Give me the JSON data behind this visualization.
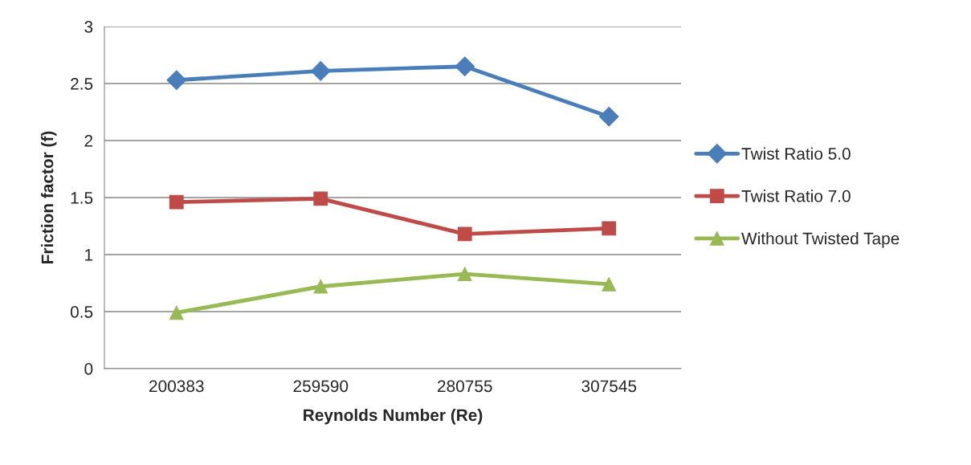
{
  "chart_data": {
    "type": "line",
    "xlabel": "Reynolds Number (Re)",
    "ylabel": "Friction factor (f)",
    "categories": [
      "200383",
      "259590",
      "280755",
      "307545"
    ],
    "series": [
      {
        "name": "Twist Ratio 5.0",
        "color": "#4a7ebb",
        "marker": "diamond",
        "values": [
          2.53,
          2.61,
          2.65,
          2.21
        ]
      },
      {
        "name": "Twist Ratio 7.0",
        "color": "#be4b48",
        "marker": "square",
        "values": [
          1.46,
          1.49,
          1.18,
          1.23
        ]
      },
      {
        "name": "Without Twisted Tape",
        "color": "#98b954",
        "marker": "triangle",
        "values": [
          0.49,
          0.72,
          0.83,
          0.74
        ]
      }
    ],
    "ylim": [
      0,
      3
    ],
    "yticks": [
      0,
      0.5,
      1,
      1.5,
      2,
      2.5,
      3
    ],
    "grid": "y",
    "legend": "right",
    "line_style": "solid"
  }
}
